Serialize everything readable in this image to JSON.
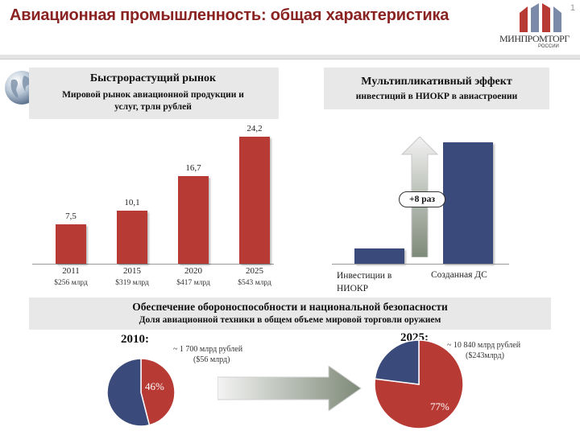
{
  "header": {
    "title": "Авиационная промышленность: общая характеристика",
    "page_number": "1",
    "logo_name": "МИНПРОМТОРГ",
    "logo_sub": "РОССИИ"
  },
  "left_panel": {
    "title": "Быстрорастущий рынок",
    "subtitle_line1": "Мировой рынок авиационной продукции и",
    "subtitle_line2": "услуг, трлн рублей"
  },
  "right_panel": {
    "title_line1": "Мультипликативный эффект",
    "title_line2": "инвестиций в НИОКР в авиастроении",
    "multiplier_label": "+8 раз",
    "bar_labels": [
      "Инвестиции в НИОКР",
      "Созданная ДС"
    ]
  },
  "bottom_panel": {
    "title_line1": "Обеспечение обороноспособности и национальной безопасности",
    "title_line2": "Доля авиационной техники в общем объеме мировой торговли оружием",
    "year_2010": "2010:",
    "note_2010_line1": "~ 1 700 млрд рублей",
    "note_2010_line2": "($56 млрд)",
    "year_2025": "2025:",
    "note_2025_line1": "~ 10 840 млрд рублей",
    "note_2025_line2": "($243млрд)",
    "pie_2010_label": "46%",
    "pie_2025_label": "77%"
  },
  "colors": {
    "red": "#b83a34",
    "navy": "#3a4a7a",
    "title": "#8a2222"
  },
  "chart_data": [
    {
      "type": "bar",
      "title": "Быстрорастущий рынок",
      "subtitle": "Мировой рынок авиационной продукции и услуг, трлн рублей",
      "categories": [
        "2011",
        "2015",
        "2020",
        "2025"
      ],
      "category_sublabels": [
        "$256 млрд",
        "$319 млрд",
        "$417 млрд",
        "$543 млрд"
      ],
      "values": [
        7.5,
        10.1,
        16.7,
        24.2
      ],
      "value_labels": [
        "7,5",
        "10,1",
        "16,7",
        "24,2"
      ],
      "ylim": [
        0,
        26
      ]
    },
    {
      "type": "bar",
      "title": "Мультипликативный эффект инвестиций в НИОКР в авиастроении",
      "categories": [
        "Инвестиции в НИОКР",
        "Созданная ДС"
      ],
      "values": [
        1,
        8
      ],
      "ylim": [
        0,
        8.5
      ]
    },
    {
      "type": "pie",
      "title": "2010:",
      "slices": [
        {
          "name": "",
          "value": 46,
          "label": "46%",
          "color": "#b83a34"
        },
        {
          "name": "",
          "value": 54,
          "label": "",
          "color": "#3a4a7a"
        }
      ]
    },
    {
      "type": "pie",
      "title": "2025:",
      "slices": [
        {
          "name": "",
          "value": 77,
          "label": "77%",
          "color": "#b83a34"
        },
        {
          "name": "",
          "value": 23,
          "label": "",
          "color": "#3a4a7a"
        }
      ]
    }
  ]
}
